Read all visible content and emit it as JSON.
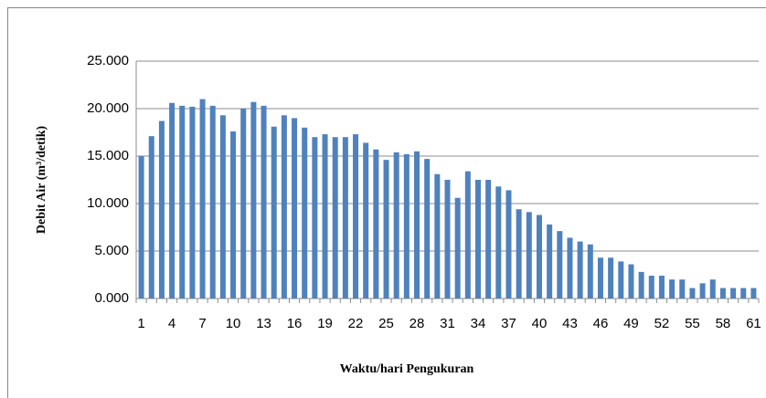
{
  "chart_data": {
    "type": "bar",
    "y_label": "Debit Air (m³/detik)",
    "x_label": "Waktu/hari Pengukuran",
    "categories": [
      "1",
      null,
      null,
      "4",
      null,
      null,
      "7",
      null,
      null,
      "10",
      null,
      null,
      "13",
      null,
      null,
      "16",
      null,
      null,
      "19",
      null,
      null,
      "22",
      null,
      null,
      "25",
      null,
      null,
      "28",
      null,
      null,
      "31",
      null,
      null,
      "34",
      null,
      null,
      "37",
      null,
      null,
      "40",
      null,
      null,
      "43",
      null,
      null,
      "46",
      null,
      null,
      "49",
      null,
      null,
      "52",
      null,
      null,
      "55",
      null,
      null,
      "58",
      null,
      null,
      "61"
    ],
    "values": [
      15.0,
      17.1,
      18.7,
      20.6,
      20.3,
      20.2,
      21.0,
      20.3,
      19.3,
      17.6,
      20.0,
      20.7,
      20.3,
      18.1,
      19.3,
      19.0,
      18.0,
      17.0,
      17.3,
      17.0,
      17.0,
      17.3,
      16.4,
      15.7,
      14.6,
      15.4,
      15.2,
      15.5,
      14.7,
      13.1,
      12.5,
      10.6,
      13.4,
      12.5,
      12.5,
      11.8,
      11.4,
      9.4,
      9.1,
      8.8,
      7.8,
      7.1,
      6.4,
      6.0,
      5.7,
      4.3,
      4.3,
      3.9,
      3.6,
      2.8,
      2.4,
      2.4,
      2.0,
      2.0,
      1.1,
      1.6,
      2.0,
      1.1,
      1.1,
      1.1,
      1.1
    ],
    "color": "#4f81bd",
    "ylim": [
      0,
      25
    ],
    "yticks": [
      {
        "value": 0,
        "label": "0.000"
      },
      {
        "value": 5,
        "label": "5.000"
      },
      {
        "value": 10,
        "label": "10.000"
      },
      {
        "value": 15,
        "label": "15.000"
      },
      {
        "value": 20,
        "label": "20.000"
      },
      {
        "value": 25,
        "label": "25.000"
      }
    ],
    "grid": true
  }
}
